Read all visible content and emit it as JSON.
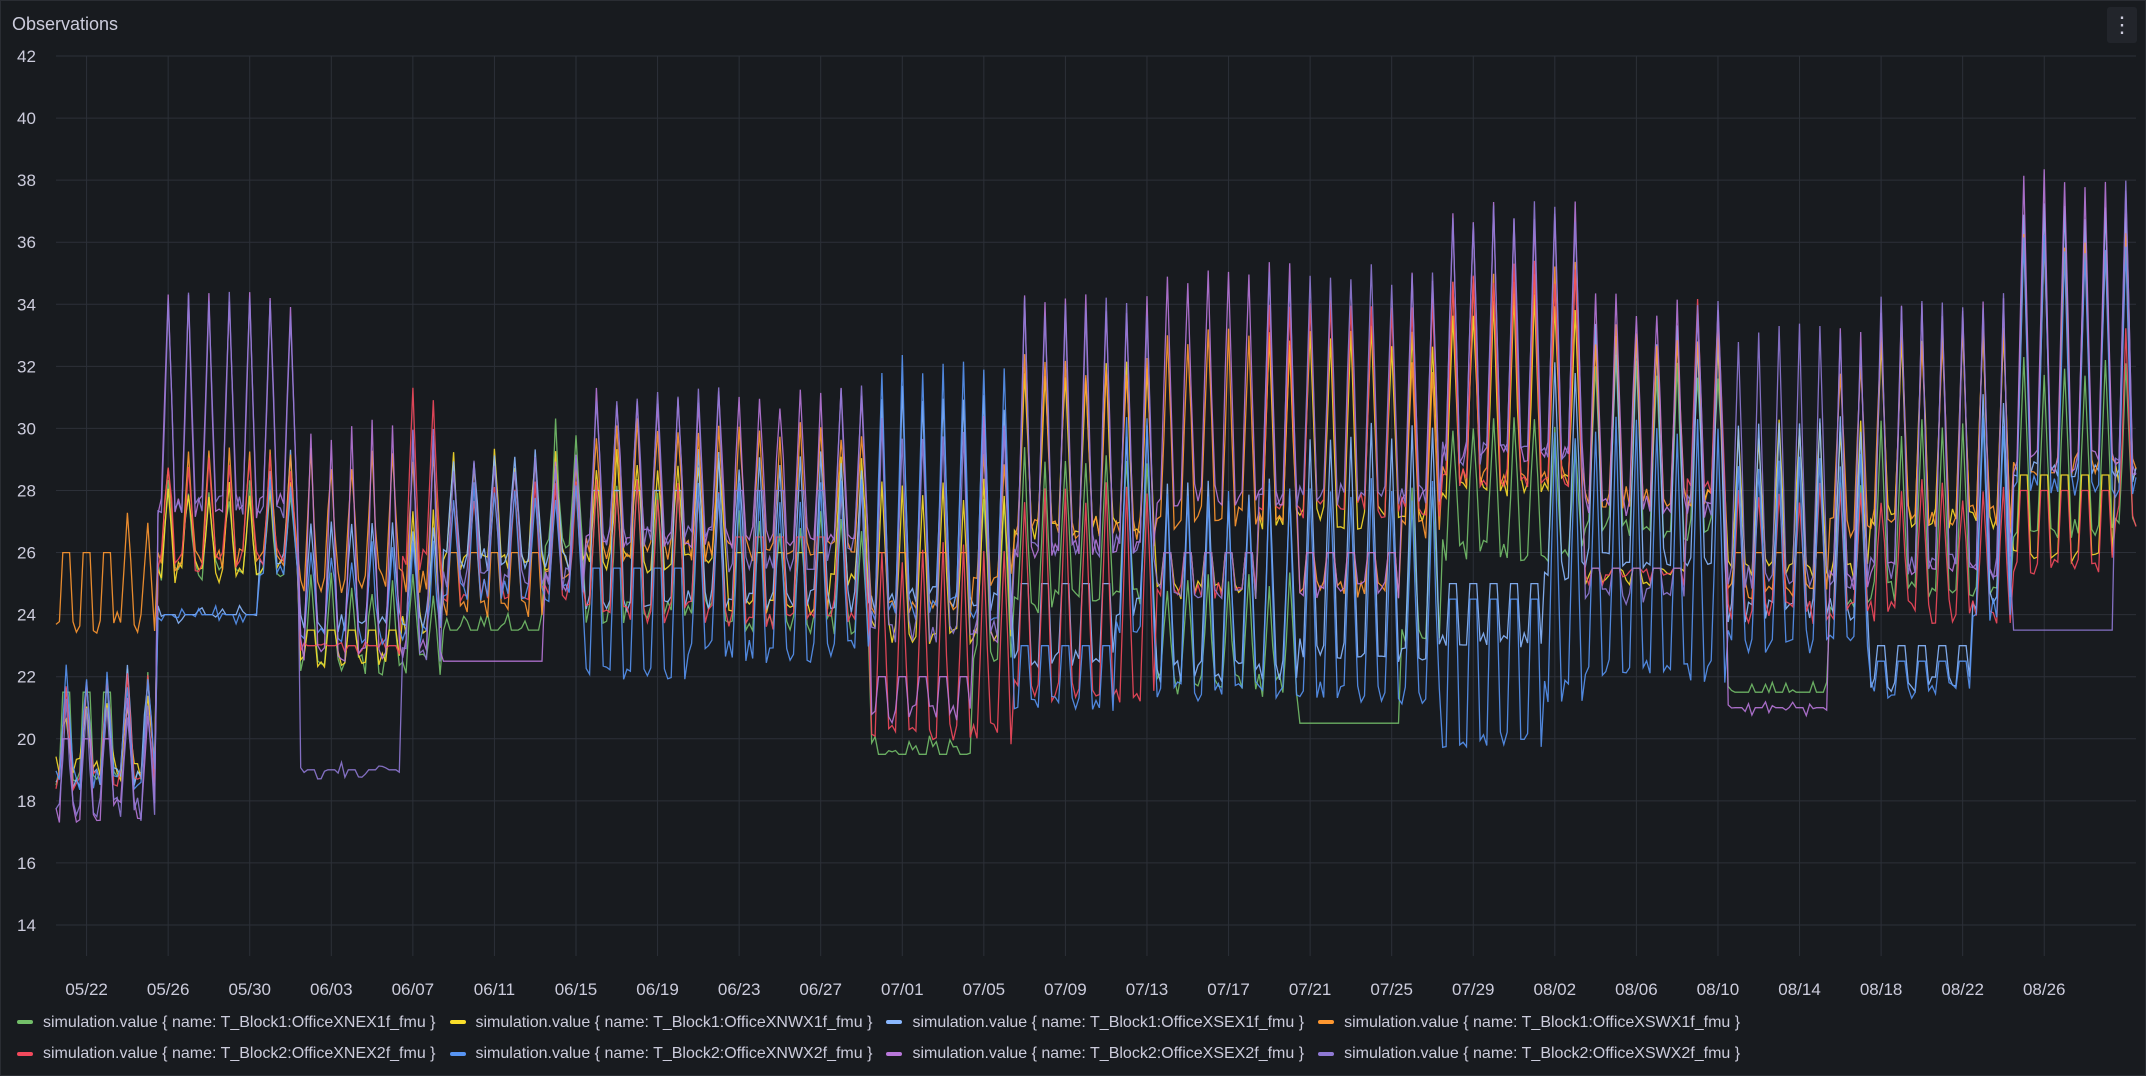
{
  "panel": {
    "title": "Observations",
    "menu_icon": "vertical-ellipsis-icon",
    "menu_glyph": "⋮"
  },
  "colors": {
    "background": "#181b1f",
    "grid": "#2c3038",
    "text": "#ccccdc"
  },
  "chart_data": {
    "type": "line",
    "title": "Observations",
    "xlabel": "",
    "ylabel": "",
    "ylim": [
      13,
      42
    ],
    "yticks": [
      14,
      16,
      18,
      20,
      22,
      24,
      26,
      28,
      30,
      32,
      34,
      36,
      38,
      40,
      42
    ],
    "xlim": [
      "05/20 12:00",
      "08/30 12:00"
    ],
    "xticks": [
      "05/22",
      "05/26",
      "05/30",
      "06/03",
      "06/07",
      "06/11",
      "06/15",
      "06/19",
      "06/23",
      "06/27",
      "07/01",
      "07/05",
      "07/09",
      "07/13",
      "07/17",
      "07/21",
      "07/25",
      "07/29",
      "08/02",
      "08/06",
      "08/10",
      "08/14",
      "08/18",
      "08/22",
      "08/26"
    ],
    "grid": true,
    "legend_position": "bottom",
    "x_resolution": "hourly, approximate",
    "series": [
      {
        "name": "simulation.value { name: T_Block1:OfficeXNEX1f_fmu }",
        "color": "#73bf69",
        "weekly": [
          [
            17,
            22,
            21.5
          ],
          [
            24,
            28,
            21.5
          ],
          [
            21,
            25,
            19.5
          ],
          [
            24,
            30,
            23.5
          ],
          [
            22,
            28,
            22.5
          ],
          [
            22,
            27,
            22.5
          ],
          [
            20,
            28,
            19.5
          ],
          [
            22,
            29,
            20
          ],
          [
            20,
            25,
            18.5
          ],
          [
            21,
            28,
            18.5
          ],
          [
            24,
            30,
            21
          ],
          [
            24,
            32,
            22.5
          ],
          [
            22,
            28,
            21
          ],
          [
            22,
            30,
            22
          ],
          [
            24,
            32,
            21.5
          ],
          [
            22,
            33,
            20
          ]
        ]
      },
      {
        "name": "simulation.value { name: T_Block1:OfficeXNWX1f_fmu }",
        "color": "#fade2a",
        "weekly": [
          [
            18,
            21,
            22
          ],
          [
            24,
            28,
            24.5
          ],
          [
            22,
            27,
            23.5
          ],
          [
            24,
            29,
            23.5
          ],
          [
            24,
            29,
            28
          ],
          [
            23,
            29,
            26
          ],
          [
            21,
            28,
            22
          ],
          [
            24,
            32,
            26
          ],
          [
            24,
            33,
            26
          ],
          [
            24,
            33,
            26
          ],
          [
            25,
            34,
            26
          ],
          [
            25,
            33,
            25.5
          ],
          [
            23,
            30,
            30.5
          ],
          [
            24,
            33,
            29
          ],
          [
            24,
            37,
            28.5
          ],
          [
            21,
            32,
            28
          ]
        ]
      },
      {
        "name": "simulation.value { name: T_Block1:OfficeXSEX1f_fmu }",
        "color": "#8ab8ff",
        "weekly": [
          [
            17,
            22,
            22
          ],
          [
            24,
            29,
            24
          ],
          [
            22,
            27,
            24
          ],
          [
            24,
            29,
            24
          ],
          [
            22,
            29,
            28
          ],
          [
            22,
            29,
            26
          ],
          [
            21,
            31,
            22
          ],
          [
            21,
            30,
            25
          ],
          [
            19,
            28,
            25
          ],
          [
            19,
            30,
            25
          ],
          [
            22,
            32,
            25
          ],
          [
            22,
            33,
            22
          ],
          [
            21,
            30,
            22
          ],
          [
            21,
            31,
            23
          ],
          [
            24,
            37,
            29
          ],
          [
            21,
            32,
            22
          ]
        ]
      },
      {
        "name": "simulation.value { name: T_Block1:OfficeXSWX1f_fmu }",
        "color": "#ff9830",
        "weekly": [
          [
            22,
            27,
            26
          ],
          [
            24,
            29,
            26
          ],
          [
            23,
            29,
            26
          ],
          [
            23,
            29,
            26
          ],
          [
            24,
            30,
            27
          ],
          [
            24,
            30,
            26.5
          ],
          [
            23,
            29,
            26
          ],
          [
            24,
            32,
            26
          ],
          [
            24,
            33,
            26
          ],
          [
            24,
            32,
            26
          ],
          [
            25,
            35,
            26
          ],
          [
            25,
            33,
            25
          ],
          [
            24,
            32,
            26
          ],
          [
            24,
            33,
            26
          ],
          [
            25,
            36,
            26
          ],
          [
            24,
            33,
            26
          ]
        ]
      },
      {
        "name": "simulation.value { name: T_Block2:OfficeXNEX2f_fmu }",
        "color": "#f2495c",
        "weekly": [
          [
            17,
            22,
            22
          ],
          [
            24,
            29,
            23
          ],
          [
            23,
            31,
            23
          ],
          [
            23,
            28,
            22
          ],
          [
            22,
            28,
            26.5
          ],
          [
            22,
            28,
            26.5
          ],
          [
            17,
            26,
            22
          ],
          [
            18,
            28,
            20
          ],
          [
            24,
            34,
            26
          ],
          [
            24,
            34,
            26
          ],
          [
            25,
            35,
            26
          ],
          [
            25,
            34,
            25.5
          ],
          [
            22,
            28,
            22.5
          ],
          [
            22,
            28,
            23
          ],
          [
            24,
            33,
            28
          ],
          [
            21,
            31,
            22.5
          ]
        ]
      },
      {
        "name": "simulation.value { name: T_Block2:OfficeXNWX2f_fmu }",
        "color": "#5794f2",
        "weekly": [
          [
            17,
            22,
            22
          ],
          [
            24,
            28,
            24
          ],
          [
            22,
            26,
            23.5
          ],
          [
            23,
            28,
            23
          ],
          [
            20,
            28,
            25.5
          ],
          [
            20,
            28,
            25
          ],
          [
            20,
            32,
            22.5
          ],
          [
            20,
            30,
            23
          ],
          [
            18,
            28,
            24.5
          ],
          [
            18,
            28,
            24.5
          ],
          [
            17,
            30,
            24.5
          ],
          [
            18,
            30,
            24
          ],
          [
            20,
            29,
            21.5
          ],
          [
            21,
            30,
            22.5
          ],
          [
            24,
            36,
            31.5
          ],
          [
            21,
            31,
            24
          ]
        ]
      },
      {
        "name": "simulation.value { name: T_Block2:OfficeXSEX2f_fmu }",
        "color": "#b877d9",
        "weekly": [
          [
            16,
            21,
            20
          ],
          [
            24,
            34,
            26
          ],
          [
            19,
            30,
            19
          ],
          [
            23,
            29,
            19
          ],
          [
            24,
            31,
            27.5
          ],
          [
            24,
            31,
            28
          ],
          [
            20,
            30,
            22
          ],
          [
            22,
            34,
            26
          ],
          [
            24,
            35,
            26
          ],
          [
            24,
            35,
            26
          ],
          [
            25,
            37,
            26
          ],
          [
            24,
            34,
            25.5
          ],
          [
            21,
            33,
            21
          ],
          [
            21,
            34,
            22
          ],
          [
            24,
            38,
            21.5
          ],
          [
            21,
            38,
            22
          ]
        ]
      },
      {
        "name": "simulation.value { name: T_Block2:OfficeXSWX2f_fmu }",
        "color": "#8f79d4",
        "weekly": [
          [
            16,
            21,
            20
          ],
          [
            24,
            34,
            26
          ],
          [
            19,
            30,
            19
          ],
          [
            23,
            29,
            19
          ],
          [
            24,
            31,
            27.5
          ],
          [
            24,
            31,
            28
          ],
          [
            20,
            30,
            22
          ],
          [
            22,
            34,
            26
          ],
          [
            24,
            35,
            26
          ],
          [
            24,
            35,
            26
          ],
          [
            25,
            37,
            26
          ],
          [
            24,
            34,
            25.5
          ],
          [
            21,
            33,
            21
          ],
          [
            21,
            34,
            22
          ],
          [
            24,
            38,
            21.5
          ],
          [
            21,
            38,
            22
          ]
        ]
      }
    ]
  }
}
